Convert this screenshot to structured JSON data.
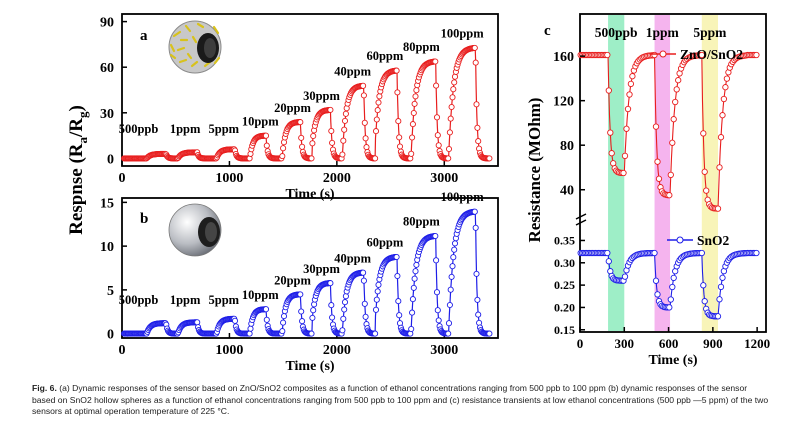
{
  "chart_data": [
    {
      "panel": "a",
      "type": "line",
      "xlabel": "Time (s)",
      "ylabel": "Respnse (Ra/Rg)",
      "xlim": [
        0,
        3500
      ],
      "ylim": [
        -5,
        95
      ],
      "xticks": [
        "0",
        "1000",
        "2000",
        "3000"
      ],
      "yticks": [
        "0",
        "30",
        "60",
        "90"
      ],
      "color": "#e81e1e",
      "annotations": [
        "500ppb",
        "1ppm",
        "5ppm",
        "10ppm",
        "20ppm",
        "30ppm",
        "40ppm",
        "60ppm",
        "80ppm",
        "100ppm"
      ],
      "pulses": [
        {
          "start": 230,
          "end": 410,
          "peak": 3
        },
        {
          "start": 520,
          "end": 700,
          "peak": 4
        },
        {
          "start": 880,
          "end": 1050,
          "peak": 6
        },
        {
          "start": 1190,
          "end": 1340,
          "peak": 15
        },
        {
          "start": 1490,
          "end": 1660,
          "peak": 24
        },
        {
          "start": 1760,
          "end": 1940,
          "peak": 32
        },
        {
          "start": 2050,
          "end": 2250,
          "peak": 48
        },
        {
          "start": 2350,
          "end": 2560,
          "peak": 58
        },
        {
          "start": 2690,
          "end": 2920,
          "peak": 64
        },
        {
          "start": 3040,
          "end": 3290,
          "peak": 73
        }
      ]
    },
    {
      "panel": "b",
      "type": "line",
      "xlabel": "Time (s)",
      "ylabel": "Respnse (Ra/Rg)",
      "xlim": [
        0,
        3500
      ],
      "ylim": [
        -0.5,
        15.5
      ],
      "xticks": [
        "0",
        "1000",
        "2000",
        "3000"
      ],
      "yticks": [
        "0",
        "5",
        "10",
        "15"
      ],
      "color": "#1e1ee8",
      "annotations": [
        "500ppb",
        "1ppm",
        "5ppm",
        "10ppm",
        "20ppm",
        "30ppm",
        "40ppm",
        "60ppm",
        "80ppm",
        "100ppm"
      ],
      "pulses": [
        {
          "start": 230,
          "end": 410,
          "peak": 1.2
        },
        {
          "start": 520,
          "end": 700,
          "peak": 1.3
        },
        {
          "start": 880,
          "end": 1050,
          "peak": 1.7
        },
        {
          "start": 1190,
          "end": 1340,
          "peak": 2.8
        },
        {
          "start": 1490,
          "end": 1660,
          "peak": 4.5
        },
        {
          "start": 1760,
          "end": 1940,
          "peak": 5.8
        },
        {
          "start": 2050,
          "end": 2250,
          "peak": 7
        },
        {
          "start": 2350,
          "end": 2560,
          "peak": 8.8
        },
        {
          "start": 2690,
          "end": 2920,
          "peak": 11.2
        },
        {
          "start": 3040,
          "end": 3290,
          "peak": 14
        }
      ]
    },
    {
      "panel": "c",
      "type": "line",
      "xlabel": "Time (s)",
      "ylabel": "Resistance (MOhm)",
      "xlim": [
        0,
        1260
      ],
      "xticks": [
        "0",
        "300",
        "600",
        "900",
        "1200"
      ],
      "upper": {
        "ylim": [
          20,
          170
        ],
        "yticks": [
          "40",
          "80",
          "120",
          "160"
        ],
        "series_name": "ZnO/SnO2",
        "color": "#e81e1e",
        "baseline": 161,
        "pulses": [
          {
            "start": 190,
            "end": 300,
            "min": 55
          },
          {
            "start": 505,
            "end": 610,
            "min": 35
          },
          {
            "start": 825,
            "end": 935,
            "min": 23
          }
        ]
      },
      "lower": {
        "ylim": [
          0.145,
          0.36
        ],
        "yticks": [
          "0.35",
          "0.30",
          "0.25",
          "0.20",
          "0.15"
        ],
        "series_name": "SnO2",
        "color": "#1e1ee8",
        "baseline": 0.322,
        "pulses": [
          {
            "start": 190,
            "end": 300,
            "min": 0.26
          },
          {
            "start": 505,
            "end": 610,
            "min": 0.2
          },
          {
            "start": 825,
            "end": 935,
            "min": 0.18
          }
        ]
      },
      "bands": [
        {
          "label": "500ppb",
          "from": 190,
          "to": 300,
          "color": "#7de8b4"
        },
        {
          "label": "1ppm",
          "from": 505,
          "to": 610,
          "color": "#f29be8"
        },
        {
          "label": "5ppm",
          "from": 825,
          "to": 935,
          "color": "#f5f0a0"
        }
      ]
    }
  ],
  "caption": {
    "label": "Fig. 6.",
    "text": "(a) Dynamic responses of the sensor based on ZnO/SnO2 composites as a function of ethanol concentrations ranging from 500 ppb to 100 ppm (b) dynamic responses of the sensor based on SnO2 hollow spheres as a function of ethanol concentrations ranging from 500 ppb to 100 ppm and (c) resistance transients at low ethanol concentrations (500 ppb —5 ppm) of the two sensors at optimal operation temperature of 225 °C."
  }
}
